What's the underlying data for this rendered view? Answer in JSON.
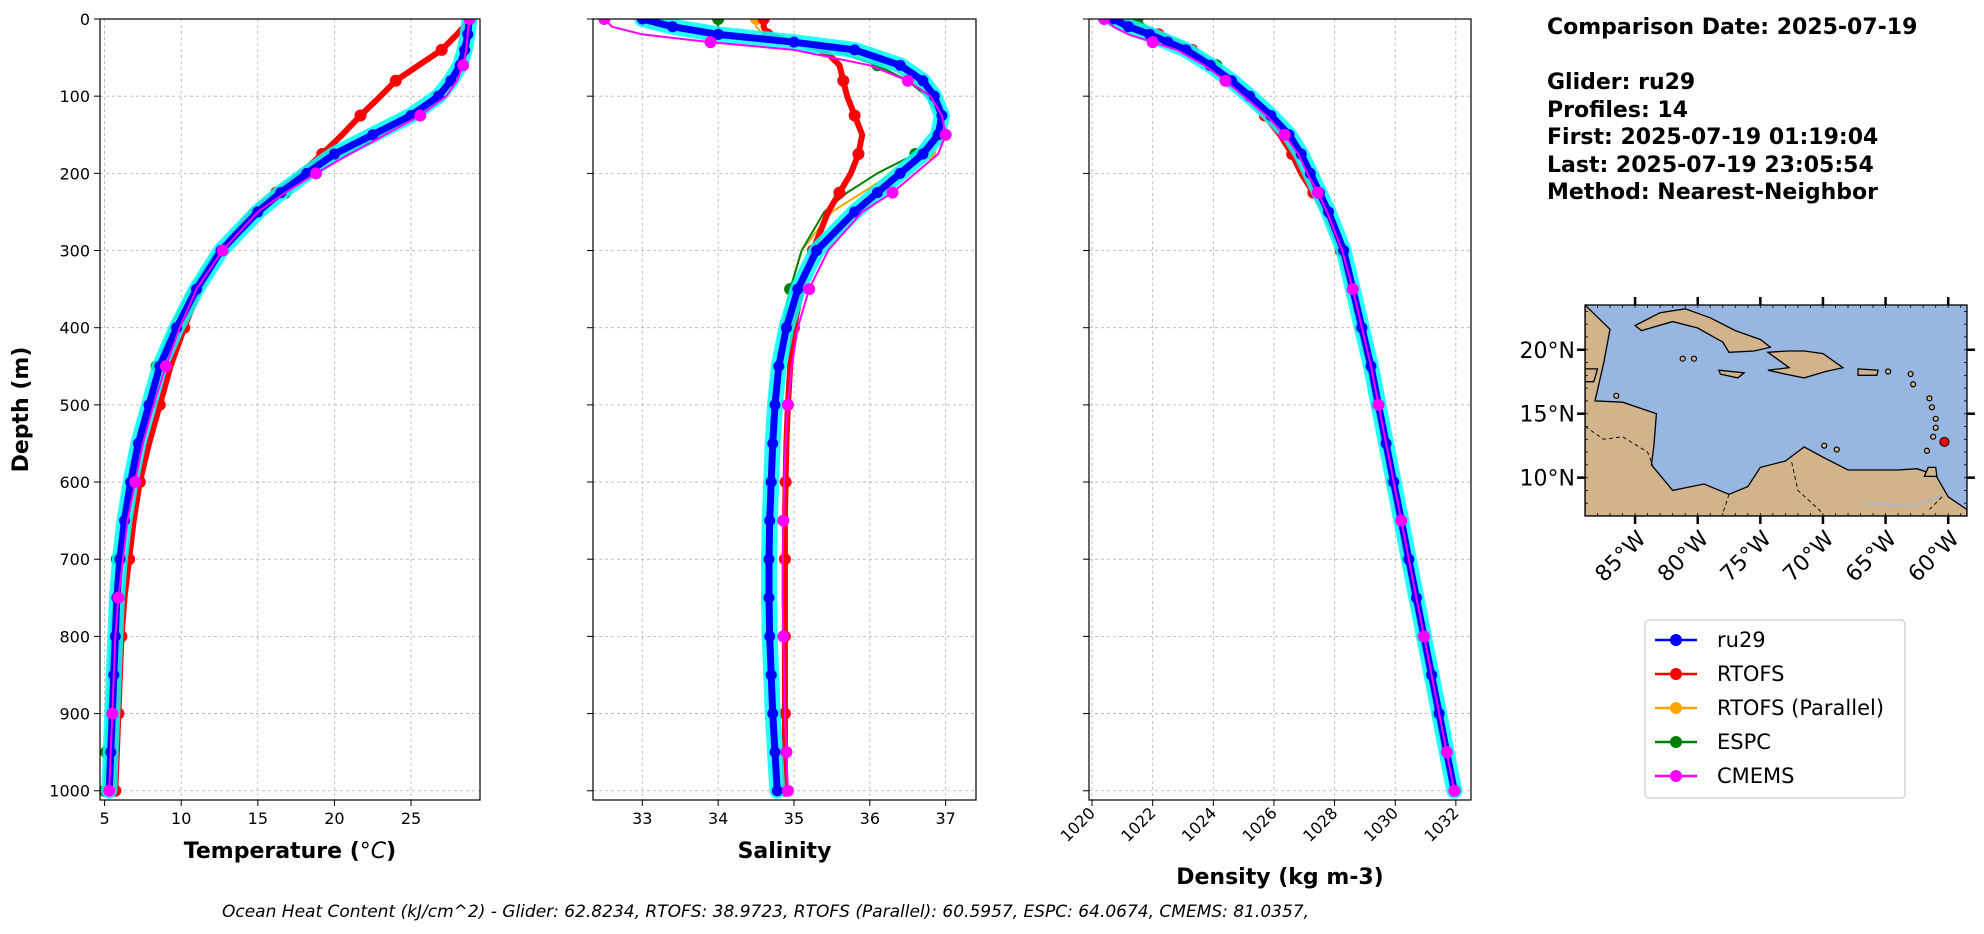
{
  "info": {
    "comparison_date": "Comparison Date: 2025-07-19",
    "glider": "Glider: ru29",
    "profiles": "Profiles: 14",
    "first": "First: 2025-07-19 01:19:04",
    "last": "Last: 2025-07-19 23:05:54",
    "method": "Method: Nearest-Neighbor"
  },
  "footer": "Ocean Heat Content (kJ/cm^2) - Glider: 62.8234,  RTOFS: 38.9723,  RTOFS (Parallel): 60.5957,  ESPC: 64.0674,  CMEMS: 81.0357,",
  "legend": [
    {
      "name": "ru29",
      "color": "#0000ff"
    },
    {
      "name": "RTOFS",
      "color": "#ff0000"
    },
    {
      "name": "RTOFS (Parallel)",
      "color": "#ffa500"
    },
    {
      "name": "ESPC",
      "color": "#008000"
    },
    {
      "name": "CMEMS",
      "color": "#ff00ff"
    }
  ],
  "map": {
    "lat_labels": [
      "20°N",
      "15°N",
      "10°N"
    ],
    "lat_values": [
      20,
      15,
      10
    ],
    "lon_labels": [
      "85°W",
      "80°W",
      "75°W",
      "70°W",
      "65°W",
      "60°W"
    ],
    "lon_values": [
      -85,
      -80,
      -75,
      -70,
      -65,
      -60
    ],
    "extent": {
      "lon": [
        -89,
        -58.5
      ],
      "lat": [
        7,
        23.5
      ]
    },
    "ocean_color": "#97b6e1",
    "land_color": "#d2b48c",
    "glider_position": {
      "lon": -60.3,
      "lat": 12.8,
      "color": "#ff0000"
    }
  },
  "chart_data": [
    {
      "type": "line",
      "xlabel": "Temperature (°C)",
      "xlabel_main": "Temperature (",
      "xlabel_unit": "°C",
      "xlabel_end": ")",
      "ylabel": "Depth (m)",
      "xlim": [
        4.7,
        29.5
      ],
      "ylim": [
        1012,
        0
      ],
      "x_ticks": [
        5,
        10,
        15,
        20,
        25
      ],
      "y_ticks": [
        0,
        100,
        200,
        300,
        400,
        500,
        600,
        700,
        800,
        900,
        1000
      ],
      "x_tick_labels": [
        "5",
        "10",
        "15",
        "20",
        "25"
      ],
      "y_tick_labels": [
        "0",
        "100",
        "200",
        "300",
        "400",
        "500",
        "600",
        "700",
        "800",
        "900",
        "1000"
      ],
      "grid": true,
      "depth": [
        0,
        20,
        40,
        60,
        80,
        100,
        125,
        150,
        175,
        200,
        225,
        250,
        300,
        350,
        400,
        450,
        500,
        550,
        600,
        650,
        700,
        750,
        800,
        850,
        900,
        950,
        1000
      ],
      "series": [
        {
          "name": "ru29",
          "values": [
            28.8,
            28.7,
            28.5,
            28.2,
            27.6,
            26.8,
            25.0,
            22.5,
            20.0,
            18.2,
            16.5,
            15.0,
            12.6,
            11.0,
            9.7,
            8.6,
            7.9,
            7.2,
            6.7,
            6.3,
            6.0,
            5.8,
            5.7,
            5.6,
            5.5,
            5.4,
            5.3
          ]
        },
        {
          "name": "RTOFS",
          "values": [
            28.9,
            28.0,
            27.0,
            25.5,
            24.0,
            23.0,
            21.7,
            20.5,
            19.2,
            17.8,
            16.2,
            14.6,
            12.6,
            11.2,
            10.2,
            9.3,
            8.6,
            7.9,
            7.3,
            6.9,
            6.6,
            6.3,
            6.1,
            6.0,
            5.9,
            5.8,
            5.7
          ]
        },
        {
          "name": "RTOFS (Parallel)",
          "values": [
            28.8,
            28.6,
            28.4,
            28.0,
            27.4,
            26.7,
            25.2,
            23.0,
            20.8,
            18.8,
            16.8,
            15.0,
            12.3,
            10.6,
            9.3,
            8.4,
            7.7,
            7.0,
            6.5,
            6.1,
            5.8,
            5.6,
            5.4,
            5.3,
            5.2,
            5.1,
            5.0
          ]
        },
        {
          "name": "ESPC",
          "values": [
            28.8,
            28.6,
            28.4,
            28.0,
            27.4,
            26.7,
            25.2,
            23.0,
            20.8,
            18.8,
            16.8,
            15.0,
            12.3,
            10.6,
            9.3,
            8.4,
            7.7,
            7.0,
            6.5,
            6.1,
            5.8,
            5.6,
            5.4,
            5.3,
            5.2,
            5.1,
            5.0
          ]
        },
        {
          "name": "CMEMS",
          "values": [
            28.8,
            28.7,
            28.6,
            28.4,
            28.0,
            27.3,
            25.6,
            23.3,
            21.0,
            18.8,
            16.8,
            15.0,
            12.7,
            11.0,
            9.9,
            9.0,
            8.2,
            7.5,
            7.0,
            6.5,
            6.2,
            5.9,
            5.7,
            5.6,
            5.5,
            5.4,
            5.3
          ]
        }
      ]
    },
    {
      "type": "line",
      "xlabel": "Salinity",
      "ylabel": "",
      "xlim": [
        32.35,
        37.4
      ],
      "ylim": [
        1012,
        0
      ],
      "x_ticks": [
        33,
        34,
        35,
        36,
        37
      ],
      "x_tick_labels": [
        "33",
        "34",
        "35",
        "36",
        "37"
      ],
      "y_ticks": [
        0,
        100,
        200,
        300,
        400,
        500,
        600,
        700,
        800,
        900,
        1000
      ],
      "grid": true,
      "depth": [
        0,
        10,
        20,
        30,
        40,
        60,
        80,
        100,
        125,
        150,
        175,
        200,
        225,
        250,
        300,
        350,
        400,
        450,
        500,
        550,
        600,
        650,
        700,
        750,
        800,
        850,
        900,
        950,
        1000
      ],
      "series": [
        {
          "name": "ru29",
          "values": [
            33.0,
            33.4,
            34.0,
            35.0,
            35.8,
            36.4,
            36.7,
            36.85,
            36.95,
            36.9,
            36.7,
            36.4,
            36.1,
            35.8,
            35.3,
            35.05,
            34.9,
            34.8,
            34.75,
            34.72,
            34.7,
            34.68,
            34.67,
            34.67,
            34.68,
            34.7,
            34.72,
            34.75,
            34.78
          ]
        },
        {
          "name": "RTOFS",
          "values": [
            34.6,
            34.6,
            34.65,
            35.0,
            35.4,
            35.6,
            35.65,
            35.7,
            35.8,
            35.9,
            35.85,
            35.75,
            35.6,
            35.45,
            35.25,
            35.1,
            35.0,
            34.95,
            34.92,
            34.9,
            34.89,
            34.88,
            34.88,
            34.88,
            34.88,
            34.88,
            34.88,
            34.88,
            34.88
          ]
        },
        {
          "name": "RTOFS (Parallel)",
          "values": [
            34.5,
            34.5,
            34.6,
            35.0,
            35.6,
            36.2,
            36.6,
            36.8,
            36.9,
            36.95,
            36.8,
            36.3,
            35.9,
            35.5,
            35.1,
            34.95,
            34.85,
            34.8,
            34.75,
            34.72,
            34.7,
            34.69,
            34.68,
            34.68,
            34.69,
            34.7,
            34.72,
            34.75,
            34.78
          ]
        },
        {
          "name": "ESPC",
          "values": [
            34.0,
            34.0,
            34.1,
            34.8,
            35.5,
            36.1,
            36.5,
            36.75,
            36.9,
            36.9,
            36.6,
            36.1,
            35.7,
            35.4,
            35.1,
            34.95,
            34.85,
            34.78,
            34.74,
            34.71,
            34.69,
            34.68,
            34.67,
            34.67,
            34.68,
            34.7,
            34.72,
            34.75,
            34.78
          ]
        },
        {
          "name": "CMEMS",
          "values": [
            32.5,
            32.6,
            33.0,
            33.9,
            35.0,
            36.0,
            36.5,
            36.8,
            36.95,
            37.0,
            36.9,
            36.6,
            36.3,
            35.9,
            35.45,
            35.2,
            35.05,
            34.97,
            34.92,
            34.89,
            34.87,
            34.86,
            34.85,
            34.85,
            34.86,
            34.87,
            34.88,
            34.9,
            34.92
          ]
        }
      ]
    },
    {
      "type": "line",
      "xlabel": "Density (kg m-3)",
      "ylabel": "",
      "xlim": [
        1019.9,
        1032.5
      ],
      "ylim": [
        1012,
        0
      ],
      "x_ticks": [
        1020,
        1022,
        1024,
        1026,
        1028,
        1030,
        1032
      ],
      "x_tick_labels": [
        "1020",
        "1022",
        "1024",
        "1026",
        "1028",
        "1030",
        "1032"
      ],
      "y_ticks": [
        0,
        100,
        200,
        300,
        400,
        500,
        600,
        700,
        800,
        900,
        1000
      ],
      "grid": true,
      "depth": [
        0,
        10,
        20,
        30,
        40,
        60,
        80,
        100,
        125,
        150,
        175,
        200,
        225,
        250,
        300,
        350,
        400,
        450,
        500,
        550,
        600,
        650,
        700,
        750,
        800,
        850,
        900,
        950,
        1000
      ],
      "series": [
        {
          "name": "ru29",
          "values": [
            1020.7,
            1021.2,
            1021.9,
            1022.5,
            1023.1,
            1023.9,
            1024.6,
            1025.2,
            1025.9,
            1026.5,
            1026.9,
            1027.2,
            1027.5,
            1027.8,
            1028.3,
            1028.6,
            1028.9,
            1029.2,
            1029.45,
            1029.7,
            1029.95,
            1030.2,
            1030.45,
            1030.7,
            1030.95,
            1031.2,
            1031.45,
            1031.7,
            1031.95
          ]
        },
        {
          "name": "RTOFS",
          "values": [
            1020.9,
            1021.5,
            1022.2,
            1022.8,
            1023.3,
            1024.0,
            1024.6,
            1025.1,
            1025.7,
            1026.2,
            1026.6,
            1026.9,
            1027.3,
            1027.7,
            1028.2,
            1028.55,
            1028.85,
            1029.15,
            1029.4,
            1029.65,
            1029.9,
            1030.15,
            1030.4,
            1030.65,
            1030.9,
            1031.15,
            1031.4,
            1031.65,
            1031.95
          ]
        },
        {
          "name": "RTOFS (Parallel)",
          "values": [
            1021.0,
            1021.6,
            1022.3,
            1022.9,
            1023.4,
            1024.1,
            1024.7,
            1025.2,
            1025.85,
            1026.4,
            1026.85,
            1027.15,
            1027.5,
            1027.8,
            1028.3,
            1028.6,
            1028.9,
            1029.2,
            1029.45,
            1029.7,
            1029.95,
            1030.2,
            1030.45,
            1030.7,
            1030.95,
            1031.2,
            1031.45,
            1031.7,
            1032.0
          ]
        },
        {
          "name": "ESPC",
          "values": [
            1021.5,
            1021.8,
            1022.4,
            1022.9,
            1023.4,
            1024.1,
            1024.7,
            1025.2,
            1025.85,
            1026.4,
            1026.85,
            1027.15,
            1027.5,
            1027.8,
            1028.3,
            1028.6,
            1028.9,
            1029.2,
            1029.45,
            1029.7,
            1029.95,
            1030.2,
            1030.45,
            1030.7,
            1030.95,
            1031.2,
            1031.45,
            1031.7,
            1032.0
          ]
        },
        {
          "name": "CMEMS",
          "values": [
            1020.4,
            1020.7,
            1021.2,
            1022.0,
            1022.8,
            1023.7,
            1024.4,
            1025.0,
            1025.75,
            1026.35,
            1026.8,
            1027.1,
            1027.45,
            1027.75,
            1028.25,
            1028.6,
            1028.9,
            1029.2,
            1029.45,
            1029.7,
            1029.95,
            1030.2,
            1030.45,
            1030.7,
            1030.95,
            1031.2,
            1031.45,
            1031.7,
            1031.95
          ]
        }
      ]
    }
  ]
}
